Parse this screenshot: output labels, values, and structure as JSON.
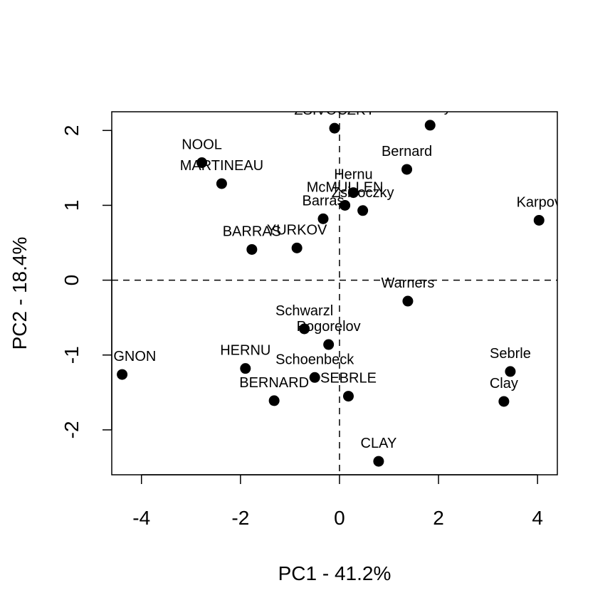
{
  "chart_data": {
    "type": "scatter",
    "title": "",
    "xlabel": "PC1 - 41.2%",
    "ylabel": "PC2 - 18.4%",
    "xlim": [
      -4.6,
      4.4
    ],
    "ylim": [
      -2.6,
      2.25
    ],
    "xticks": [
      -4,
      -2,
      0,
      2,
      4
    ],
    "yticks": [
      -2,
      -1,
      0,
      1,
      2
    ],
    "reference_lines": {
      "x": 0,
      "y": 0,
      "style": "dashed"
    },
    "grid": false,
    "legend": "none",
    "marker_color": "#000000",
    "points": [
      {
        "label": "ZSIVOCZKY",
        "x": -0.1,
        "y": 2.03
      },
      {
        "label": "Macey",
        "x": 1.83,
        "y": 2.07
      },
      {
        "label": "NOOL",
        "x": -2.78,
        "y": 1.57
      },
      {
        "label": "MARTINEAU",
        "x": -2.38,
        "y": 1.29
      },
      {
        "label": "Bernard",
        "x": 1.36,
        "y": 1.48
      },
      {
        "label": "Hernu",
        "x": 0.28,
        "y": 1.17
      },
      {
        "label": "McMULLEN",
        "x": 0.11,
        "y": 1.0
      },
      {
        "label": "Zsivoczky",
        "x": 0.47,
        "y": 0.93
      },
      {
        "label": "Barras",
        "x": -0.33,
        "y": 0.82
      },
      {
        "label": "Karpov",
        "x": 4.03,
        "y": 0.8
      },
      {
        "label": "BARRAS",
        "x": -1.77,
        "y": 0.41
      },
      {
        "label": "YURKOV",
        "x": -0.86,
        "y": 0.43
      },
      {
        "label": "Warners",
        "x": 1.38,
        "y": -0.28
      },
      {
        "label": "Schwarzl",
        "x": -0.71,
        "y": -0.65
      },
      {
        "label": "Pogorelov",
        "x": -0.22,
        "y": -0.86
      },
      {
        "label": "GUIGNON",
        "x": -4.39,
        "y": -1.26
      },
      {
        "label": "HERNU",
        "x": -1.9,
        "y": -1.18
      },
      {
        "label": "Schoenbeck",
        "x": -0.5,
        "y": -1.3
      },
      {
        "label": "SEBRLE",
        "x": 0.18,
        "y": -1.55
      },
      {
        "label": "BERNARD",
        "x": -1.32,
        "y": -1.61
      },
      {
        "label": "Sebrle",
        "x": 3.45,
        "y": -1.22
      },
      {
        "label": "Clay",
        "x": 3.32,
        "y": -1.62
      },
      {
        "label": "CLAY",
        "x": 0.79,
        "y": -2.42
      }
    ]
  }
}
